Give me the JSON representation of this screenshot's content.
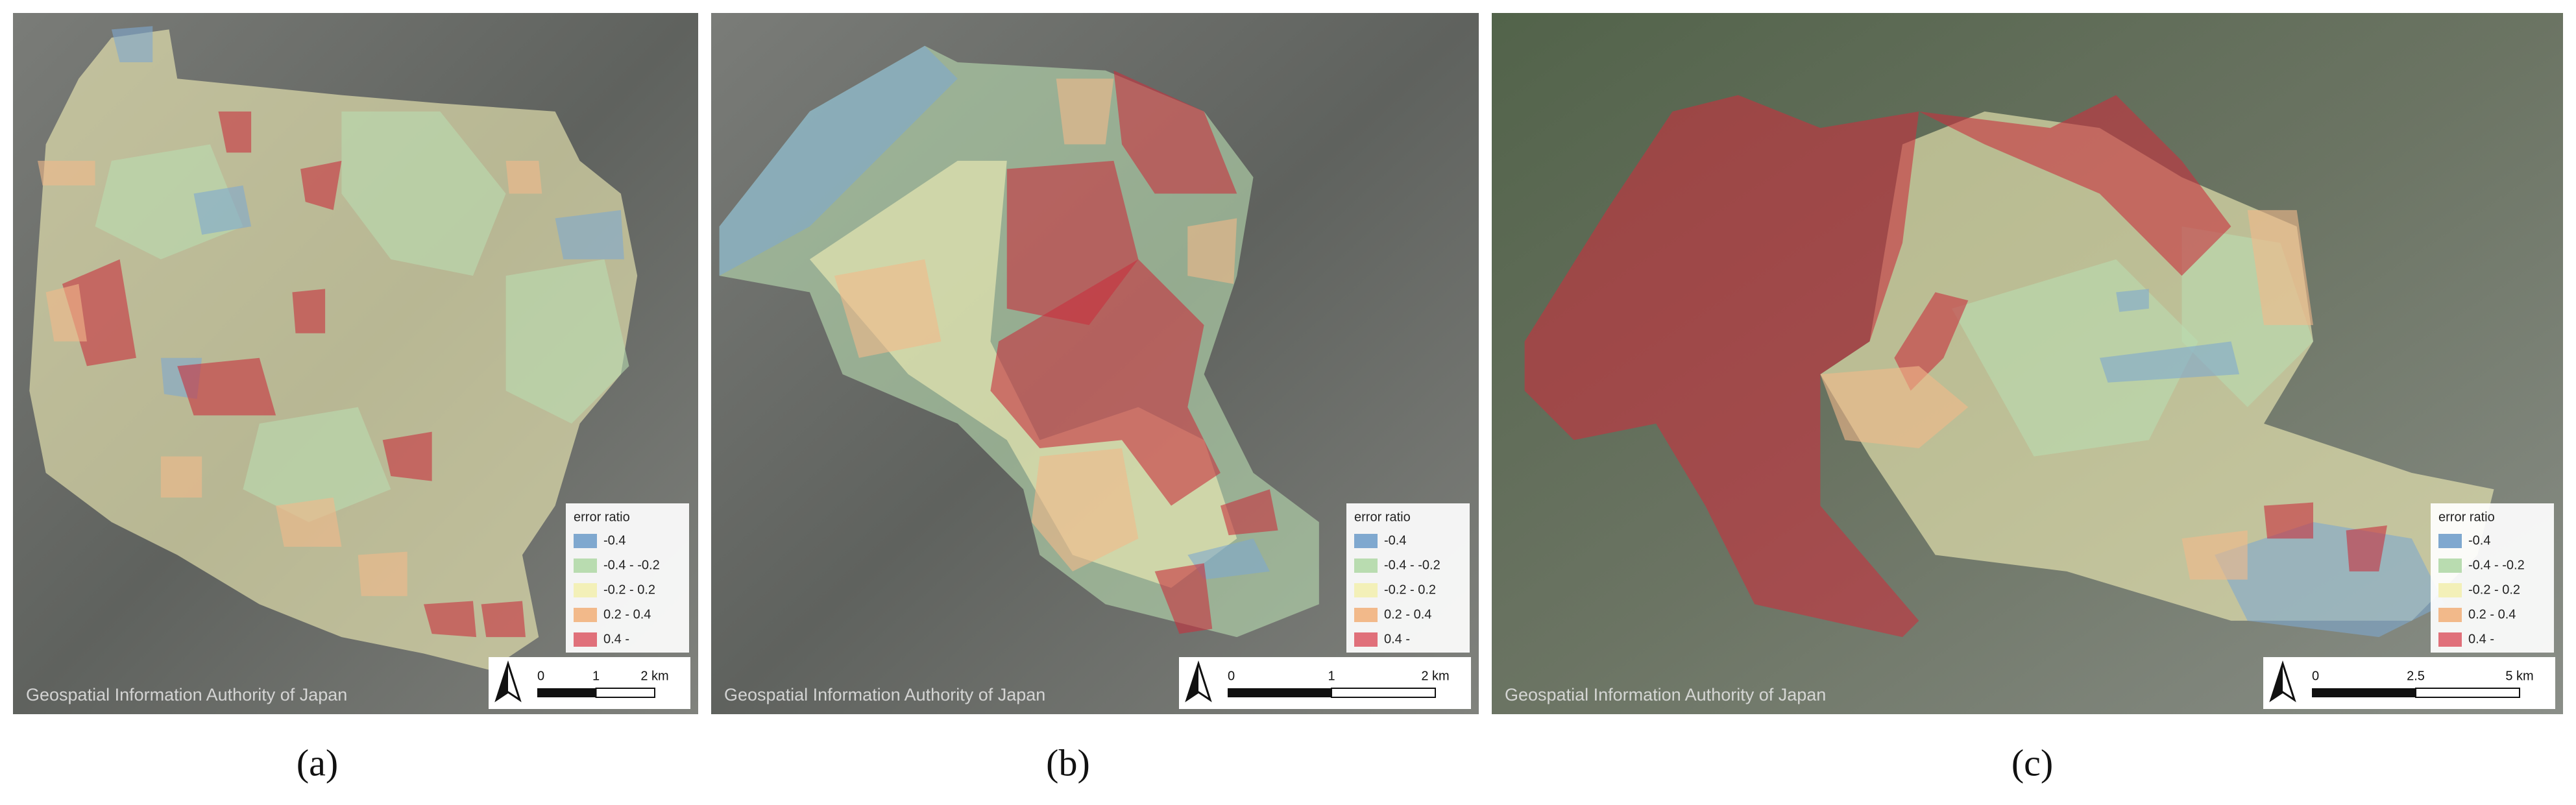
{
  "panels": [
    {
      "label": "(a)",
      "attribution": "Geospatial Information Authority of Japan",
      "legend": {
        "title": "error ratio",
        "items": [
          {
            "label": "-0.4",
            "color": "#7fa8cf"
          },
          {
            "label": "-0.4 - -0.2",
            "color": "#b9dcb0"
          },
          {
            "label": "-0.2 - 0.2",
            "color": "#f3f0b8"
          },
          {
            "label": "0.2 - 0.4",
            "color": "#f2b98a"
          },
          {
            "label": "0.4 -",
            "color": "#e0707a"
          }
        ]
      },
      "scale_bar": [
        "0",
        "1",
        "2 km"
      ]
    },
    {
      "label": "(b)",
      "attribution": "Geospatial Information Authority of Japan",
      "legend": {
        "title": "error ratio",
        "items": [
          {
            "label": "-0.4",
            "color": "#7fa8cf"
          },
          {
            "label": "-0.4 - -0.2",
            "color": "#b9dcb0"
          },
          {
            "label": "-0.2 - 0.2",
            "color": "#f3f0b8"
          },
          {
            "label": "0.2 - 0.4",
            "color": "#f2b98a"
          },
          {
            "label": "0.4 -",
            "color": "#e0707a"
          }
        ]
      },
      "scale_bar": [
        "0",
        "1",
        "2 km"
      ]
    },
    {
      "label": "(c)",
      "attribution": "Geospatial Information Authority of Japan",
      "legend": {
        "title": "error ratio",
        "items": [
          {
            "label": "-0.4",
            "color": "#7fa8cf"
          },
          {
            "label": "-0.4 - -0.2",
            "color": "#b9dcb0"
          },
          {
            "label": "-0.2 - 0.2",
            "color": "#f3f0b8"
          },
          {
            "label": "0.2 - 0.4",
            "color": "#f2b98a"
          },
          {
            "label": "0.4 -",
            "color": "#e0707a"
          }
        ]
      },
      "scale_bar": [
        "0",
        "2.5",
        "5 km"
      ]
    }
  ]
}
